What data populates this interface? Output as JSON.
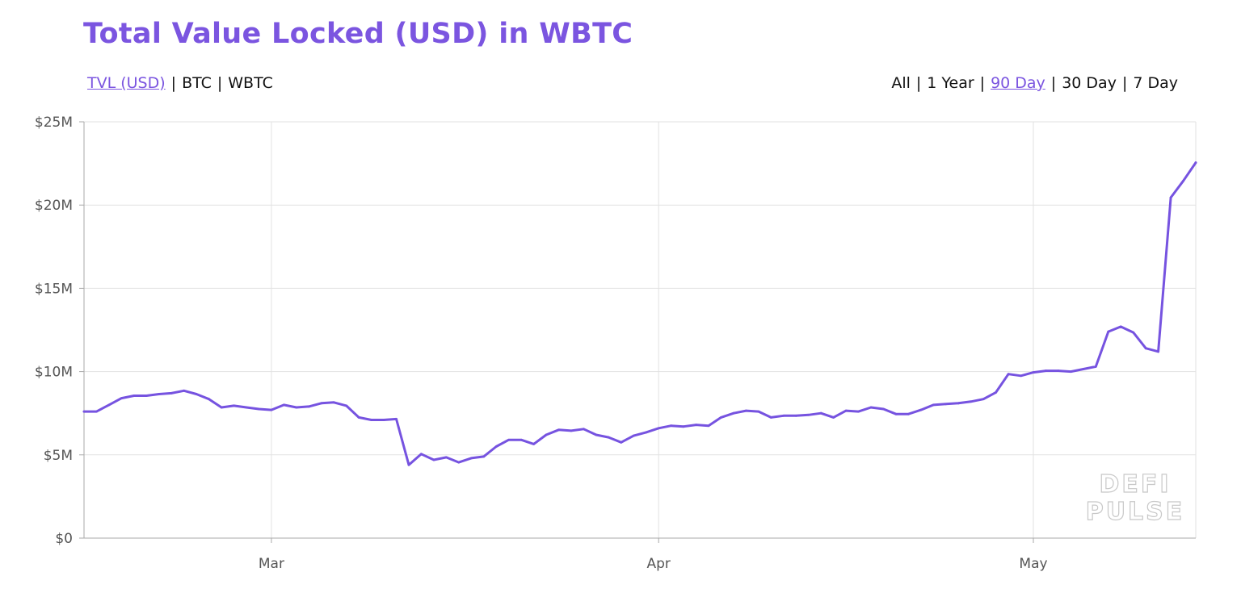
{
  "title": "Total Value Locked (USD) in WBTC",
  "metric_tabs": [
    {
      "label": "TVL (USD)",
      "active": true
    },
    {
      "label": "BTC",
      "active": false
    },
    {
      "label": "WBTC",
      "active": false
    }
  ],
  "range_tabs": [
    {
      "label": "All",
      "active": false
    },
    {
      "label": "1 Year",
      "active": false
    },
    {
      "label": "90 Day",
      "active": true
    },
    {
      "label": "30 Day",
      "active": false
    },
    {
      "label": "7 Day",
      "active": false
    }
  ],
  "separator": "|",
  "watermark": {
    "line1": "DEFI",
    "line2": "PULSE"
  },
  "colors": {
    "accent": "#7b55e0",
    "line": "#7653e0",
    "grid": "#e2e2e2",
    "axis": "#aaaaaa"
  },
  "chart_data": {
    "type": "line",
    "series": [
      {
        "values": [
          {
            "x": "2020-02-15",
            "y": 7.6
          },
          {
            "x": "2020-02-16",
            "y": 7.6
          },
          {
            "x": "2020-02-17",
            "y": 8.0
          },
          {
            "x": "2020-02-18",
            "y": 8.4
          },
          {
            "x": "2020-02-19",
            "y": 8.55
          },
          {
            "x": "2020-02-20",
            "y": 8.55
          },
          {
            "x": "2020-02-21",
            "y": 8.65
          },
          {
            "x": "2020-02-22",
            "y": 8.7
          },
          {
            "x": "2020-02-23",
            "y": 8.85
          },
          {
            "x": "2020-02-24",
            "y": 8.65
          },
          {
            "x": "2020-02-25",
            "y": 8.35
          },
          {
            "x": "2020-02-26",
            "y": 7.85
          },
          {
            "x": "2020-02-27",
            "y": 7.95
          },
          {
            "x": "2020-02-28",
            "y": 7.85
          },
          {
            "x": "2020-02-29",
            "y": 7.75
          },
          {
            "x": "2020-03-01",
            "y": 7.7
          },
          {
            "x": "2020-03-02",
            "y": 8.0
          },
          {
            "x": "2020-03-03",
            "y": 7.85
          },
          {
            "x": "2020-03-04",
            "y": 7.9
          },
          {
            "x": "2020-03-05",
            "y": 8.1
          },
          {
            "x": "2020-03-06",
            "y": 8.15
          },
          {
            "x": "2020-03-07",
            "y": 7.95
          },
          {
            "x": "2020-03-08",
            "y": 7.25
          },
          {
            "x": "2020-03-09",
            "y": 7.1
          },
          {
            "x": "2020-03-10",
            "y": 7.1
          },
          {
            "x": "2020-03-11",
            "y": 7.15
          },
          {
            "x": "2020-03-12",
            "y": 4.4
          },
          {
            "x": "2020-03-13",
            "y": 5.05
          },
          {
            "x": "2020-03-14",
            "y": 4.7
          },
          {
            "x": "2020-03-15",
            "y": 4.85
          },
          {
            "x": "2020-03-16",
            "y": 4.55
          },
          {
            "x": "2020-03-17",
            "y": 4.8
          },
          {
            "x": "2020-03-18",
            "y": 4.9
          },
          {
            "x": "2020-03-19",
            "y": 5.5
          },
          {
            "x": "2020-03-20",
            "y": 5.9
          },
          {
            "x": "2020-03-21",
            "y": 5.9
          },
          {
            "x": "2020-03-22",
            "y": 5.65
          },
          {
            "x": "2020-03-23",
            "y": 6.2
          },
          {
            "x": "2020-03-24",
            "y": 6.5
          },
          {
            "x": "2020-03-25",
            "y": 6.45
          },
          {
            "x": "2020-03-26",
            "y": 6.55
          },
          {
            "x": "2020-03-27",
            "y": 6.2
          },
          {
            "x": "2020-03-28",
            "y": 6.05
          },
          {
            "x": "2020-03-29",
            "y": 5.75
          },
          {
            "x": "2020-03-30",
            "y": 6.15
          },
          {
            "x": "2020-03-31",
            "y": 6.35
          },
          {
            "x": "2020-04-01",
            "y": 6.6
          },
          {
            "x": "2020-04-02",
            "y": 6.75
          },
          {
            "x": "2020-04-03",
            "y": 6.7
          },
          {
            "x": "2020-04-04",
            "y": 6.8
          },
          {
            "x": "2020-04-05",
            "y": 6.75
          },
          {
            "x": "2020-04-06",
            "y": 7.25
          },
          {
            "x": "2020-04-07",
            "y": 7.5
          },
          {
            "x": "2020-04-08",
            "y": 7.65
          },
          {
            "x": "2020-04-09",
            "y": 7.6
          },
          {
            "x": "2020-04-10",
            "y": 7.25
          },
          {
            "x": "2020-04-11",
            "y": 7.35
          },
          {
            "x": "2020-04-12",
            "y": 7.35
          },
          {
            "x": "2020-04-13",
            "y": 7.4
          },
          {
            "x": "2020-04-14",
            "y": 7.5
          },
          {
            "x": "2020-04-15",
            "y": 7.25
          },
          {
            "x": "2020-04-16",
            "y": 7.65
          },
          {
            "x": "2020-04-17",
            "y": 7.6
          },
          {
            "x": "2020-04-18",
            "y": 7.85
          },
          {
            "x": "2020-04-19",
            "y": 7.75
          },
          {
            "x": "2020-04-20",
            "y": 7.45
          },
          {
            "x": "2020-04-21",
            "y": 7.45
          },
          {
            "x": "2020-04-22",
            "y": 7.7
          },
          {
            "x": "2020-04-23",
            "y": 8.0
          },
          {
            "x": "2020-04-24",
            "y": 8.05
          },
          {
            "x": "2020-04-25",
            "y": 8.1
          },
          {
            "x": "2020-04-26",
            "y": 8.2
          },
          {
            "x": "2020-04-27",
            "y": 8.35
          },
          {
            "x": "2020-04-28",
            "y": 8.75
          },
          {
            "x": "2020-04-29",
            "y": 9.85
          },
          {
            "x": "2020-04-30",
            "y": 9.75
          },
          {
            "x": "2020-05-01",
            "y": 9.95
          },
          {
            "x": "2020-05-02",
            "y": 10.05
          },
          {
            "x": "2020-05-03",
            "y": 10.05
          },
          {
            "x": "2020-05-04",
            "y": 10.0
          },
          {
            "x": "2020-05-05",
            "y": 10.15
          },
          {
            "x": "2020-05-06",
            "y": 10.3
          },
          {
            "x": "2020-05-07",
            "y": 12.4
          },
          {
            "x": "2020-05-08",
            "y": 12.7
          },
          {
            "x": "2020-05-09",
            "y": 12.35
          },
          {
            "x": "2020-05-10",
            "y": 11.4
          },
          {
            "x": "2020-05-11",
            "y": 11.2
          },
          {
            "x": "2020-05-12",
            "y": 20.45
          },
          {
            "x": "2020-05-13",
            "y": 21.45
          },
          {
            "x": "2020-05-14",
            "y": 22.55
          }
        ]
      }
    ],
    "x_ticks": [
      {
        "label": "Mar",
        "x": "2020-03-01"
      },
      {
        "label": "Apr",
        "x": "2020-04-01"
      },
      {
        "label": "May",
        "x": "2020-05-01"
      }
    ],
    "y_ticks": [
      {
        "label": "$0",
        "y": 0
      },
      {
        "label": "$5M",
        "y": 5
      },
      {
        "label": "$10M",
        "y": 10
      },
      {
        "label": "$15M",
        "y": 15
      },
      {
        "label": "$20M",
        "y": 20
      },
      {
        "label": "$25M",
        "y": 25
      }
    ],
    "xlim": [
      "2020-02-15",
      "2020-05-14"
    ],
    "ylim": [
      0,
      25
    ],
    "y_unit": "USD millions",
    "grid": true,
    "legend": "none"
  }
}
